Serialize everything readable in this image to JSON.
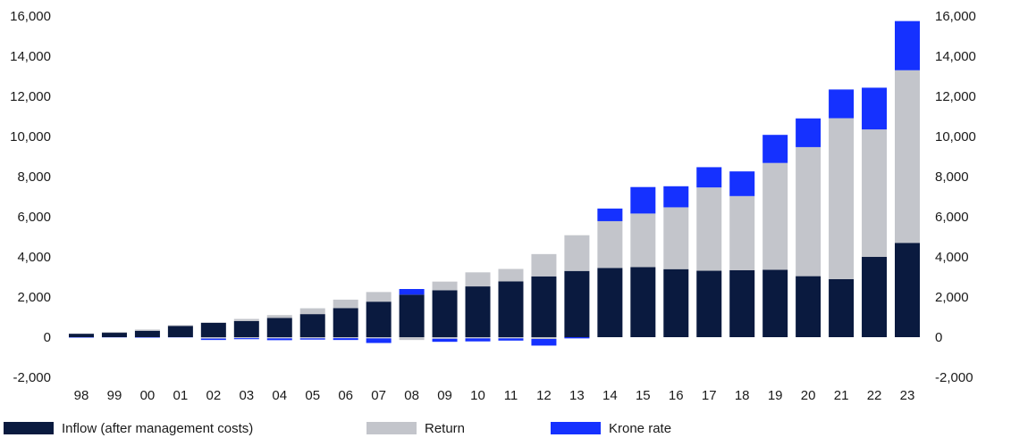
{
  "chart_data": {
    "type": "bar",
    "stacked": true,
    "categories": [
      "98",
      "99",
      "00",
      "01",
      "02",
      "03",
      "04",
      "05",
      "06",
      "07",
      "08",
      "09",
      "10",
      "11",
      "12",
      "13",
      "14",
      "15",
      "16",
      "17",
      "18",
      "19",
      "20",
      "21",
      "22",
      "23"
    ],
    "series": [
      {
        "name": "Inflow (after management costs)",
        "color": "#0a1a3f",
        "values": [
          170,
          220,
          320,
          560,
          720,
          800,
          960,
          1150,
          1450,
          1770,
          2120,
          2340,
          2530,
          2780,
          3030,
          3300,
          3450,
          3490,
          3390,
          3310,
          3340,
          3360,
          3040,
          2890,
          4000,
          4700
        ]
      },
      {
        "name": "Return",
        "color": "#c3c5cb",
        "values": [
          0,
          40,
          60,
          40,
          10,
          110,
          140,
          290,
          420,
          480,
          0,
          430,
          700,
          620,
          1110,
          1780,
          2330,
          2670,
          3080,
          4150,
          3690,
          5320,
          6430,
          8020,
          6350,
          8600
        ]
      },
      {
        "name": "Krone rate",
        "color": "#1531ff",
        "values": [
          0,
          0,
          0,
          0,
          0,
          0,
          0,
          0,
          0,
          0,
          280,
          0,
          0,
          0,
          0,
          0,
          630,
          1320,
          1050,
          1010,
          1230,
          1400,
          1430,
          1430,
          2080,
          2450
        ]
      }
    ],
    "negatives": {
      "Inflow (after management costs)": [
        0,
        0,
        0,
        0,
        0,
        0,
        0,
        0,
        0,
        0,
        0,
        0,
        0,
        0,
        0,
        0,
        0,
        0,
        0,
        0,
        0,
        0,
        0,
        0,
        0,
        0
      ],
      "Return": [
        0,
        0,
        0,
        0,
        -70,
        -50,
        -60,
        -60,
        -50,
        -60,
        -140,
        -80,
        -60,
        -60,
        -90,
        0,
        0,
        0,
        0,
        0,
        0,
        0,
        0,
        0,
        0,
        0
      ],
      "Krone rate": [
        -20,
        -10,
        -20,
        -10,
        -70,
        -50,
        -90,
        -60,
        -90,
        -230,
        0,
        -150,
        -150,
        -110,
        -330,
        -60,
        0,
        0,
        0,
        0,
        0,
        0,
        0,
        0,
        0,
        0
      ]
    },
    "y_ticks": [
      -2000,
      0,
      2000,
      4000,
      6000,
      8000,
      10000,
      12000,
      14000,
      16000
    ],
    "y_tick_labels": [
      "-2,000",
      "0",
      "2,000",
      "4,000",
      "6,000",
      "8,000",
      "10,000",
      "12,000",
      "14,000",
      "16,000"
    ],
    "ylim": [
      -2000,
      16000
    ],
    "grid": false,
    "dual_y_axis": true,
    "title": "",
    "xlabel": "",
    "ylabel": "",
    "legend_position": "bottom"
  }
}
